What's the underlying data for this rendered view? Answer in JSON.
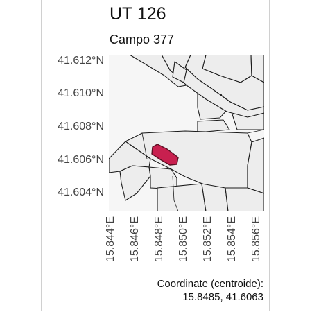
{
  "title": "UT 126",
  "subtitle": "Campo 377",
  "lat_ticks": [
    "41.612°N",
    "41.610°N",
    "41.608°N",
    "41.606°N",
    "41.604°N"
  ],
  "lon_ticks": [
    "15.844°E",
    "15.846°E",
    "15.848°E",
    "15.850°E",
    "15.852°E",
    "15.854°E",
    "15.856°E"
  ],
  "coordinates": {
    "label": "Coordinate (centroide):",
    "value": "15.8485, 41.6063"
  },
  "colors": {
    "parcel_fill": "#efefef",
    "background_fill": "#f5f5f5",
    "outline": "#1a1a1a",
    "highlight_fill": "#c8204f",
    "highlight_outline": "#5a0f22"
  }
}
